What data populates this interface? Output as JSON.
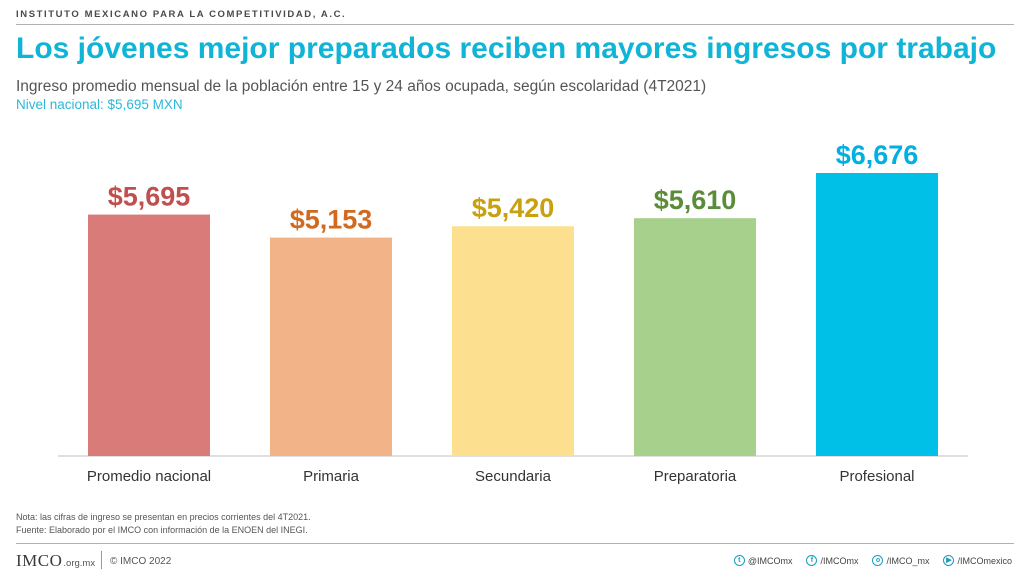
{
  "header": {
    "org": "INSTITUTO MEXICANO PARA LA COMPETITIVIDAD, A.C.",
    "title": "Los jóvenes mejor preparados reciben mayores ingresos por trabajo",
    "subtitle": "Ingreso promedio mensual de la población entre 15 y 24 años ocupada, según escolaridad (4T2021)",
    "national": "Nivel nacional: $5,695 MXN"
  },
  "chart_data": {
    "type": "bar",
    "categories": [
      "Promedio nacional",
      "Primaria",
      "Secundaria",
      "Preparatoria",
      "Profesional"
    ],
    "values": [
      5695,
      5153,
      5420,
      5610,
      6676
    ],
    "data_labels": [
      "$5,695",
      "$5,153",
      "$5,420",
      "$5,610",
      "$6,676"
    ],
    "bar_colors": [
      "#d97b78",
      "#f3b388",
      "#fde08f",
      "#a8d08d",
      "#00c0e8"
    ],
    "label_colors": [
      "#c0504d",
      "#d2691e",
      "#c8a010",
      "#5b8c3a",
      "#00b0e0"
    ],
    "ylim": [
      0,
      6676
    ],
    "grid": false,
    "legend": "none"
  },
  "notes": {
    "line1": "Nota: las cifras de ingreso se presentan en precios corrientes del 4T2021.",
    "line2": "Fuente: Elaborado por el IMCO con información de la ENOEN del INEGI."
  },
  "footer": {
    "logo": "IMCO",
    "logo_suffix": ".org.mx",
    "copyright": "© IMCO 2022",
    "socials": [
      {
        "icon": "twitter-icon",
        "glyph": "t",
        "handle": "@IMCOmx"
      },
      {
        "icon": "facebook-icon",
        "glyph": "f",
        "handle": "/IMCOmx"
      },
      {
        "icon": "instagram-icon",
        "glyph": "o",
        "handle": "/IMCO_mx"
      },
      {
        "icon": "youtube-icon",
        "glyph": "▶",
        "handle": "/IMCOmexico"
      }
    ]
  }
}
